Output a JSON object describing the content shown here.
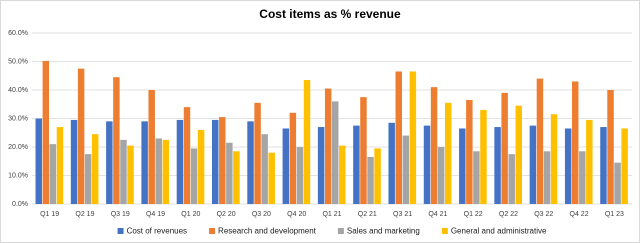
{
  "chart_data": {
    "type": "bar",
    "title": "Cost items as % revenue",
    "categories": [
      "Q1 19",
      "Q2 19",
      "Q3 19",
      "Q4 19",
      "Q1 20",
      "Q2 20",
      "Q3 20",
      "Q4 20",
      "Q1 21",
      "Q2 21",
      "Q3 21",
      "Q4 21",
      "Q1 22",
      "Q2 22",
      "Q3 22",
      "Q4 22",
      "Q1 23"
    ],
    "series": [
      {
        "name": "Cost of revenues",
        "color": "#4472c4",
        "values": [
          30,
          29.5,
          29,
          29,
          29.5,
          29.5,
          29,
          26.5,
          27,
          27.5,
          28.5,
          27.5,
          26.5,
          27,
          27.5,
          26.5,
          27
        ]
      },
      {
        "name": "Research and development",
        "color": "#ed7d31",
        "values": [
          50.2,
          47.5,
          44.5,
          40,
          34,
          30.5,
          35.5,
          32,
          40.5,
          37.5,
          46.5,
          41,
          36.5,
          39,
          44,
          43,
          40
        ]
      },
      {
        "name": "Sales and marketing",
        "color": "#a5a5a5",
        "values": [
          21,
          17.5,
          22.5,
          23,
          19.5,
          21.5,
          24.5,
          20,
          36,
          16.5,
          24,
          20,
          18.5,
          17.5,
          18.5,
          18.5,
          14.5
        ]
      },
      {
        "name": "General and administrative",
        "color": "#ffc000",
        "values": [
          27,
          24.5,
          20.5,
          22.5,
          26,
          18.5,
          18,
          43.5,
          20.5,
          19.5,
          46.5,
          35.5,
          33,
          34.5,
          31.5,
          29.5,
          26.5
        ]
      }
    ],
    "ylim": [
      0,
      60
    ],
    "yticks": [
      {
        "value": 0,
        "label": "0.0%"
      },
      {
        "value": 10,
        "label": "10.0%"
      },
      {
        "value": 20,
        "label": "20.0%"
      },
      {
        "value": 30,
        "label": "30.0%"
      },
      {
        "value": 40,
        "label": "40.0%"
      },
      {
        "value": 50,
        "label": "50.0%"
      },
      {
        "value": 60,
        "label": "60.0%"
      }
    ],
    "grid": true,
    "legend": "bottom"
  }
}
